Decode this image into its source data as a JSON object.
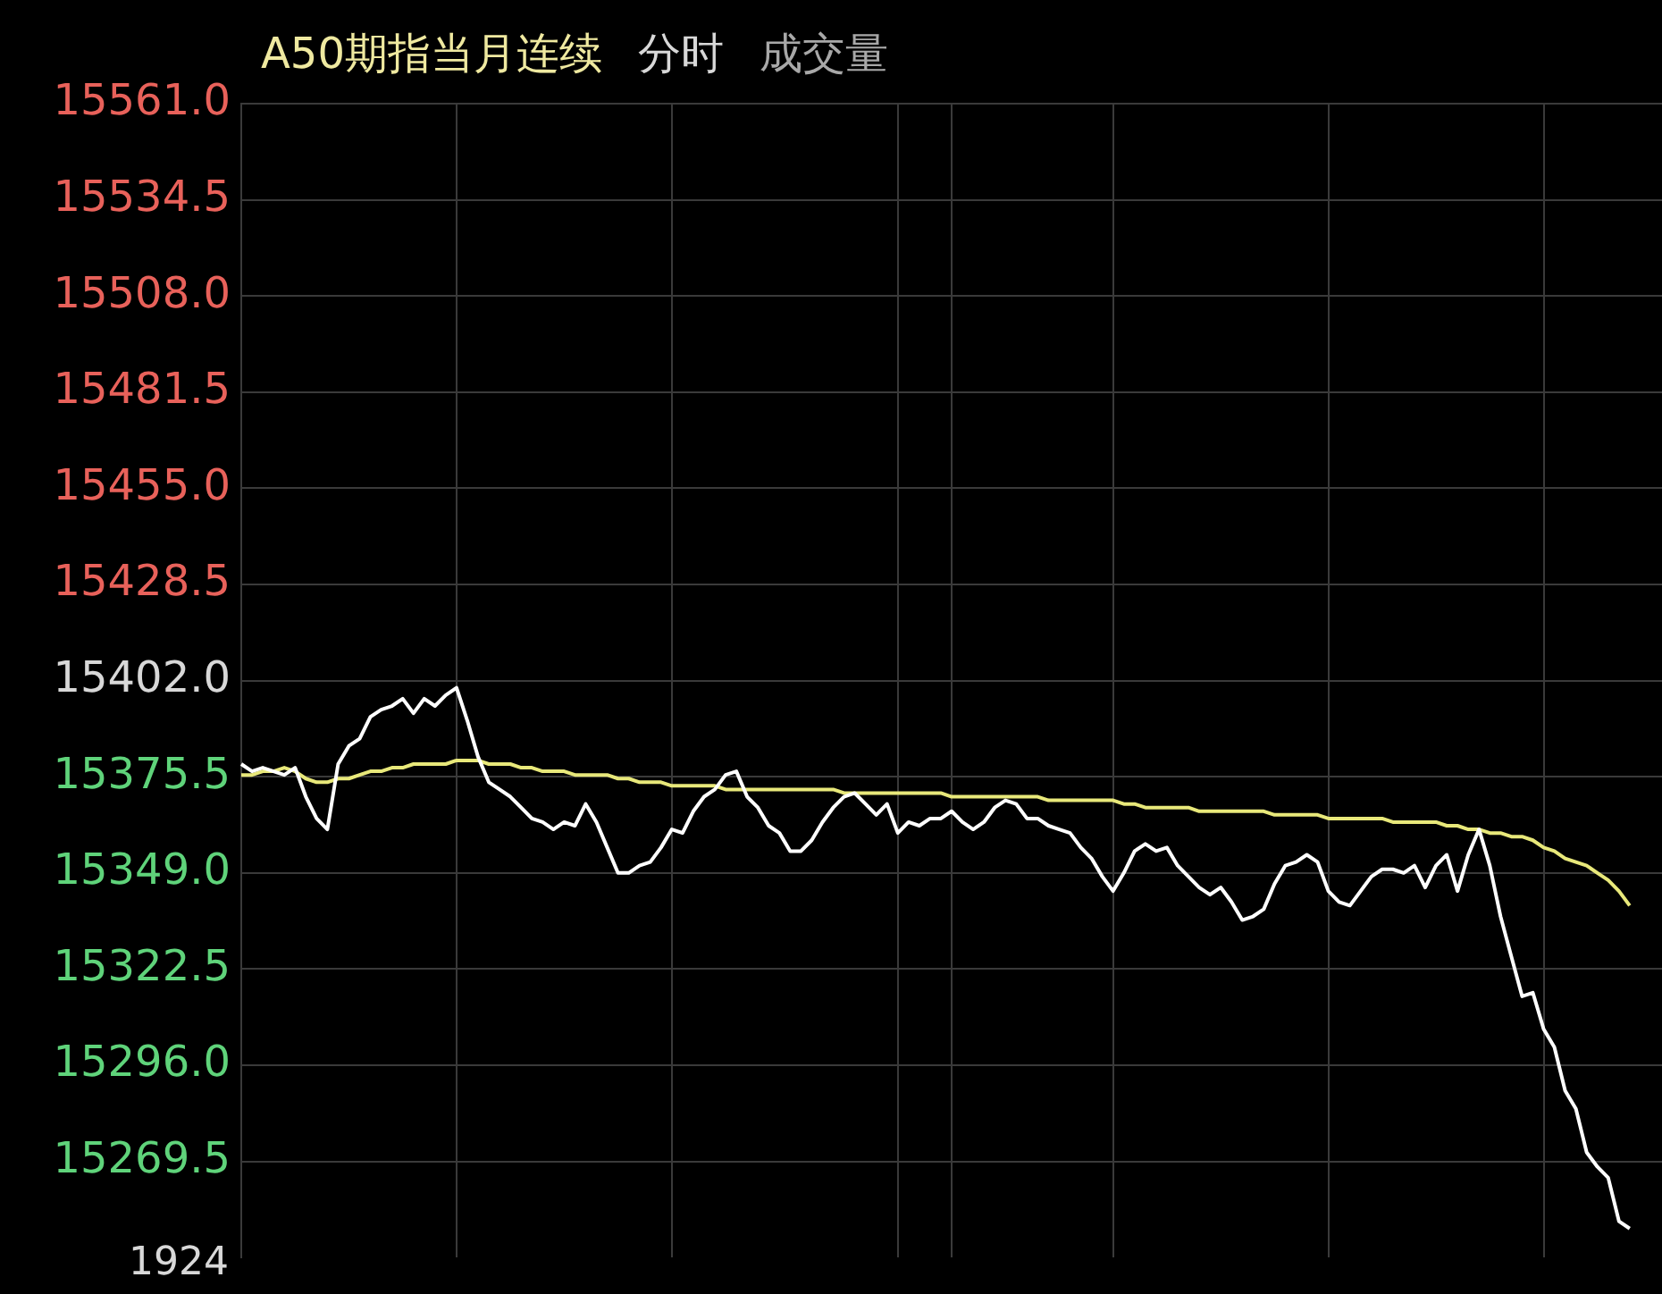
{
  "chart_data": {
    "type": "line",
    "title": "A50期指当月连续",
    "annotations": [
      "分时",
      "成交量",
      "1924"
    ],
    "categories": [
      null,
      null,
      null,
      null,
      null,
      null,
      null,
      null,
      null,
      null,
      null,
      null,
      null,
      null,
      null,
      null,
      null,
      null,
      null,
      null,
      null,
      null,
      null,
      null,
      null,
      null,
      null,
      null,
      null,
      null,
      null,
      null,
      null,
      null,
      null,
      null,
      null,
      null,
      null,
      null,
      null,
      null,
      null,
      null,
      null,
      null,
      null,
      null,
      null,
      null,
      null,
      null,
      null,
      null,
      null,
      null,
      null,
      null,
      null,
      null,
      null,
      null,
      null,
      null,
      null,
      null,
      null,
      null,
      null,
      null,
      null,
      null,
      null,
      null,
      null,
      null,
      null,
      null,
      null,
      null,
      null,
      null,
      null,
      null,
      null,
      null,
      null,
      null,
      null,
      null,
      null,
      null,
      null,
      null,
      null,
      null,
      null,
      null,
      null,
      null,
      null,
      null,
      null,
      null,
      null,
      null,
      null,
      null,
      null,
      null,
      null,
      null,
      null,
      null,
      null,
      null,
      null,
      null,
      null,
      null,
      null,
      null,
      null,
      null,
      null,
      null,
      null,
      null,
      null,
      null,
      null,
      null,
      null
    ],
    "series": [
      {
        "color": "#ffffff",
        "values": [
          15379,
          15377,
          15378,
          15377,
          15376,
          15378,
          15370,
          15364,
          15361,
          15379,
          15384,
          15386,
          15392,
          15394,
          15395,
          15397,
          15393,
          15397,
          15395,
          15398,
          15400,
          15391,
          15381,
          15374,
          15372,
          15370,
          15367,
          15364,
          15363,
          15361,
          15363,
          15362,
          15368,
          15363,
          15356,
          15349,
          15349,
          15351,
          15352,
          15356,
          15361,
          15360,
          15366,
          15370,
          15372,
          15376,
          15377,
          15370,
          15367,
          15362,
          15360,
          15355,
          15355,
          15358,
          15363,
          15367,
          15370,
          15371,
          15368,
          15365,
          15368,
          15360,
          15363,
          15362,
          15364,
          15364,
          15366,
          15363,
          15361,
          15363,
          15367,
          15369,
          15368,
          15364,
          15364,
          15362,
          15361,
          15360,
          15356,
          15353,
          15348,
          15344,
          15349,
          15355,
          15357,
          15355,
          15356,
          15351,
          15348,
          15345,
          15343,
          15345,
          15341,
          15336,
          15337,
          15339,
          15346,
          15351,
          15352,
          15354,
          15352,
          15344,
          15341,
          15340,
          15344,
          15348,
          15350,
          15350,
          15349,
          15351,
          15345,
          15351,
          15354,
          15344,
          15354,
          15361,
          15351,
          15337,
          15326,
          15315,
          15316,
          15306,
          15301,
          15289,
          15284,
          15272,
          15268,
          15265,
          15253,
          15251,
          null,
          null,
          null
        ]
      },
      {
        "color": "#e8e87a",
        "values": [
          15376,
          15376,
          15377,
          15377,
          15378,
          15377,
          15375,
          15374,
          15374,
          15375,
          15375,
          15376,
          15377,
          15377,
          15378,
          15378,
          15379,
          15379,
          15379,
          15379,
          15380,
          15380,
          15380,
          15379,
          15379,
          15379,
          15378,
          15378,
          15377,
          15377,
          15377,
          15376,
          15376,
          15376,
          15376,
          15375,
          15375,
          15374,
          15374,
          15374,
          15373,
          15373,
          15373,
          15373,
          15373,
          15372,
          15372,
          15372,
          15372,
          15372,
          15372,
          15372,
          15372,
          15372,
          15372,
          15372,
          15371,
          15371,
          15371,
          15371,
          15371,
          15371,
          15371,
          15371,
          15371,
          15371,
          15370,
          15370,
          15370,
          15370,
          15370,
          15370,
          15370,
          15370,
          15370,
          15369,
          15369,
          15369,
          15369,
          15369,
          15369,
          15369,
          15368,
          15368,
          15367,
          15367,
          15367,
          15367,
          15367,
          15366,
          15366,
          15366,
          15366,
          15366,
          15366,
          15366,
          15365,
          15365,
          15365,
          15365,
          15365,
          15364,
          15364,
          15364,
          15364,
          15364,
          15364,
          15363,
          15363,
          15363,
          15363,
          15363,
          15362,
          15362,
          15361,
          15361,
          15360,
          15360,
          15359,
          15359,
          15358,
          15356,
          15355,
          15353,
          15352,
          15351,
          15349,
          15347,
          15344,
          15340,
          null,
          null,
          null
        ]
      }
    ],
    "ylim": [
      15243,
      15561
    ],
    "yticks": [
      {
        "value": 15561,
        "label": "15561.0"
      },
      {
        "value": 15534.5,
        "label": "15534.5"
      },
      {
        "value": 15508,
        "label": "15508.0"
      },
      {
        "value": 15481.5,
        "label": "15481.5"
      },
      {
        "value": 15455,
        "label": "15455.0"
      },
      {
        "value": 15428.5,
        "label": "15428.5"
      },
      {
        "value": 15402,
        "label": "15402.0"
      },
      {
        "value": 15375.5,
        "label": "15375.5"
      },
      {
        "value": 15349,
        "label": "15349.0"
      },
      {
        "value": 15322.5,
        "label": "15322.5"
      },
      {
        "value": 15296,
        "label": "15296.0"
      },
      {
        "value": 15269.5,
        "label": "15269.5"
      }
    ],
    "grid": true,
    "legend": false,
    "marker": "none",
    "line_style": "solid",
    "tick_labels": "y"
  }
}
